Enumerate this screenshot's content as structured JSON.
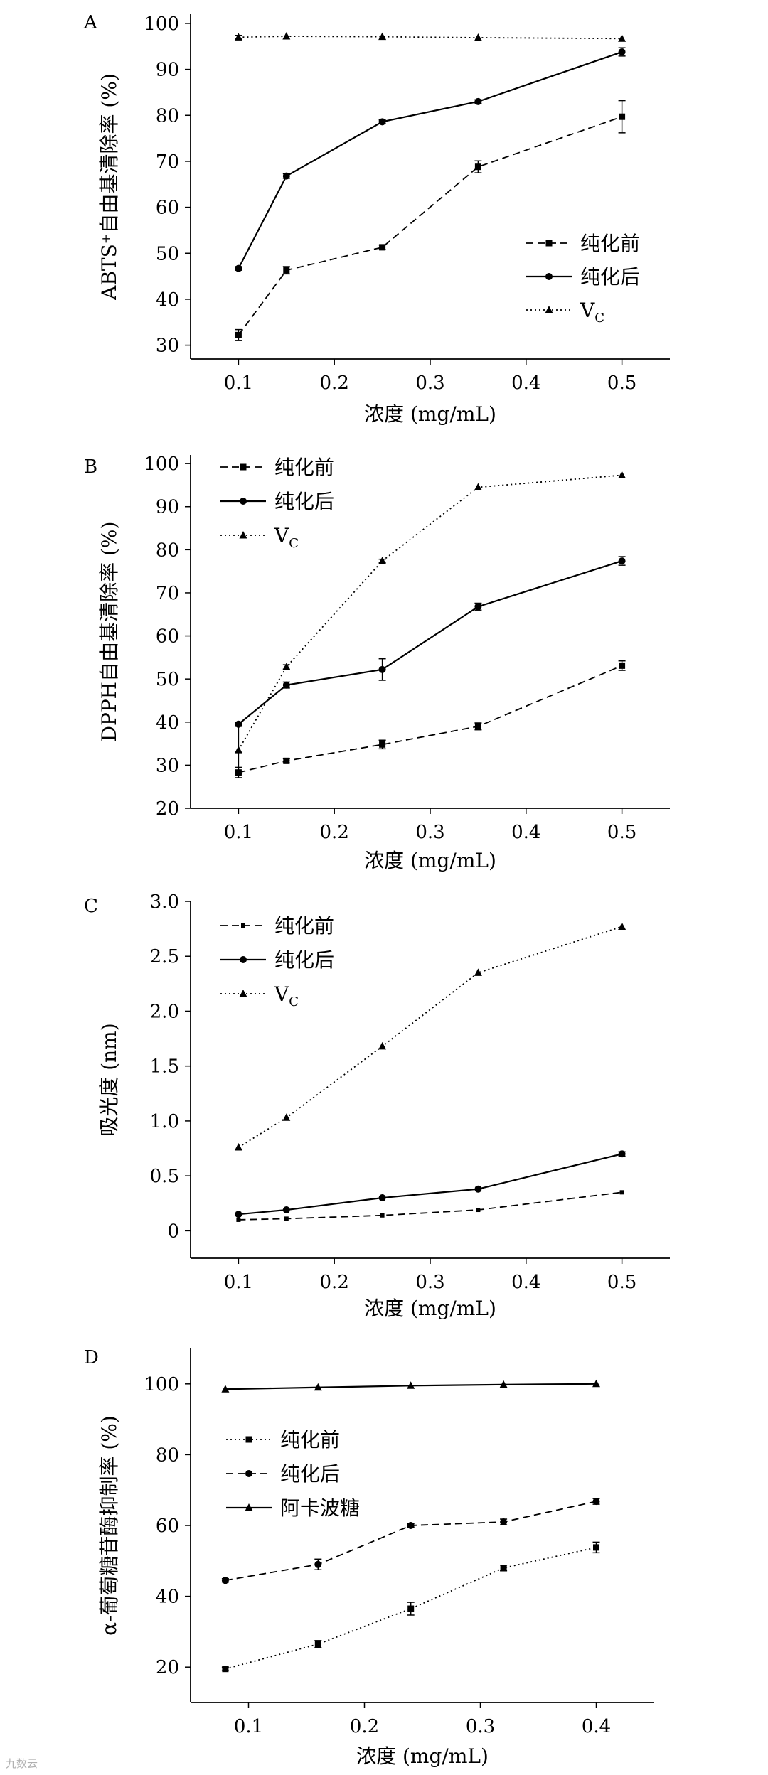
{
  "figure": {
    "watermark": "九数云"
  },
  "chart_data": [
    {
      "panel": "A",
      "type": "line",
      "xlabel": "浓度 (mg/mL)",
      "ylabel": "ABTS⁺自由基清除率 (%)",
      "xlim": [
        0.05,
        0.55
      ],
      "ylim": [
        27,
        102
      ],
      "xticks": [
        0.1,
        0.2,
        0.3,
        0.4,
        0.5
      ],
      "xtick_labels": [
        "0.1",
        "0.2",
        "0.3",
        "0.4",
        "0.5"
      ],
      "yticks": [
        30,
        40,
        50,
        60,
        70,
        80,
        90,
        100
      ],
      "ytick_labels": [
        "30",
        "40",
        "50",
        "60",
        "70",
        "80",
        "90",
        "100"
      ],
      "legend_position": "right",
      "x": [
        0.1,
        0.15,
        0.25,
        0.35,
        0.5
      ],
      "series": [
        {
          "name": "纯化前",
          "style": "dashed",
          "marker": "square",
          "values": [
            32.2,
            46.3,
            51.3,
            68.8,
            79.7
          ],
          "errors": [
            1.2,
            0.8,
            0.5,
            1.3,
            3.5
          ]
        },
        {
          "name": "纯化后",
          "style": "solid",
          "marker": "circle",
          "values": [
            46.7,
            66.8,
            78.6,
            83.0,
            93.8
          ],
          "errors": [
            0.4,
            0.5,
            0.4,
            0.4,
            0.9
          ]
        },
        {
          "name": "V",
          "subscript": "C",
          "style": "dotted",
          "marker": "triangle",
          "values": [
            97.0,
            97.2,
            97.1,
            96.9,
            96.7
          ],
          "errors": [
            0.4,
            0.3,
            0.3,
            0.3,
            0.3
          ]
        }
      ]
    },
    {
      "panel": "B",
      "type": "line",
      "xlabel": "浓度 (mg/mL)",
      "ylabel": "DPPH自由基清除率 (%)",
      "xlim": [
        0.05,
        0.55
      ],
      "ylim": [
        20,
        102
      ],
      "xticks": [
        0.1,
        0.2,
        0.3,
        0.4,
        0.5
      ],
      "xtick_labels": [
        "0.1",
        "0.2",
        "0.3",
        "0.4",
        "0.5"
      ],
      "yticks": [
        20,
        30,
        40,
        50,
        60,
        70,
        80,
        90,
        100
      ],
      "ytick_labels": [
        "20",
        "30",
        "40",
        "50",
        "60",
        "70",
        "80",
        "90",
        "100"
      ],
      "legend_position": "top-left",
      "x": [
        0.1,
        0.15,
        0.25,
        0.35,
        0.5
      ],
      "series": [
        {
          "name": "纯化前",
          "style": "dashed",
          "marker": "square",
          "values": [
            28.3,
            31.0,
            34.8,
            39.0,
            53.1
          ],
          "errors": [
            1.2,
            0.5,
            1.0,
            0.8,
            1.1
          ]
        },
        {
          "name": "纯化后",
          "style": "solid",
          "marker": "circle",
          "values": [
            39.5,
            48.6,
            52.2,
            66.8,
            77.4
          ],
          "errors": [
            0.4,
            0.7,
            2.5,
            0.8,
            1.0
          ]
        },
        {
          "name": "V",
          "subscript": "C",
          "style": "dotted",
          "marker": "triangle",
          "values": [
            33.5,
            52.8,
            77.4,
            94.5,
            97.3
          ],
          "errors": [
            5.5,
            0.5,
            0.4,
            0.3,
            0.3
          ]
        }
      ]
    },
    {
      "panel": "C",
      "type": "line",
      "xlabel": "浓度 (mg/mL)",
      "ylabel": "吸光度 (nm)",
      "xlim": [
        0.05,
        0.55
      ],
      "ylim": [
        -0.25,
        3.0
      ],
      "xticks": [
        0.1,
        0.2,
        0.3,
        0.4,
        0.5
      ],
      "xtick_labels": [
        "0.1",
        "0.2",
        "0.3",
        "0.4",
        "0.5"
      ],
      "yticks": [
        0,
        0.5,
        1.0,
        1.5,
        2.0,
        2.5,
        3.0
      ],
      "ytick_labels": [
        "0",
        "0.5",
        "1.0",
        "1.5",
        "2.0",
        "2.5",
        "3.0"
      ],
      "legend_position": "top-left",
      "x": [
        0.1,
        0.15,
        0.25,
        0.35,
        0.5
      ],
      "series": [
        {
          "name": "纯化前",
          "style": "dashed",
          "marker": "small-square",
          "values": [
            0.1,
            0.11,
            0.14,
            0.19,
            0.35
          ],
          "errors": [
            0.01,
            0.01,
            0.01,
            0.01,
            0.01
          ]
        },
        {
          "name": "纯化后",
          "style": "solid",
          "marker": "circle",
          "values": [
            0.15,
            0.19,
            0.3,
            0.38,
            0.7
          ],
          "errors": [
            0.01,
            0.01,
            0.01,
            0.01,
            0.02
          ]
        },
        {
          "name": "V",
          "subscript": "C",
          "style": "dotted",
          "marker": "triangle",
          "values": [
            0.76,
            1.03,
            1.68,
            2.35,
            2.77
          ],
          "errors": [
            0.01,
            0.01,
            0.01,
            0.01,
            0.01
          ]
        }
      ]
    },
    {
      "panel": "D",
      "type": "line",
      "xlabel": "浓度 (mg/mL)",
      "ylabel": "α-葡萄糖苷酶抑制率 (%)",
      "xlim": [
        0.05,
        0.45
      ],
      "ylim": [
        10,
        110
      ],
      "xticks": [
        0.1,
        0.2,
        0.3,
        0.4
      ],
      "xtick_labels": [
        "0.1",
        "0.2",
        "0.3",
        "0.4"
      ],
      "yticks": [
        20,
        40,
        60,
        80,
        100
      ],
      "ytick_labels": [
        "20",
        "40",
        "60",
        "80",
        "100"
      ],
      "legend_position": "left",
      "x": [
        0.08,
        0.16,
        0.24,
        0.32,
        0.4
      ],
      "series": [
        {
          "name": "纯化前",
          "style": "dotted",
          "marker": "square",
          "values": [
            19.5,
            26.5,
            36.5,
            48.0,
            53.8
          ],
          "errors": [
            0.5,
            1.0,
            1.8,
            0.8,
            1.5
          ]
        },
        {
          "name": "纯化后",
          "style": "dashed",
          "marker": "circle",
          "values": [
            44.5,
            49.0,
            60.0,
            61.0,
            66.8
          ],
          "errors": [
            0.5,
            1.5,
            0.5,
            0.8,
            0.8
          ]
        },
        {
          "name": "阿卡波糖",
          "style": "solid",
          "marker": "triangle",
          "values": [
            98.5,
            99.0,
            99.5,
            99.8,
            100.0
          ],
          "errors": [
            0.3,
            0.3,
            0.3,
            0.3,
            0.3
          ]
        }
      ]
    }
  ]
}
